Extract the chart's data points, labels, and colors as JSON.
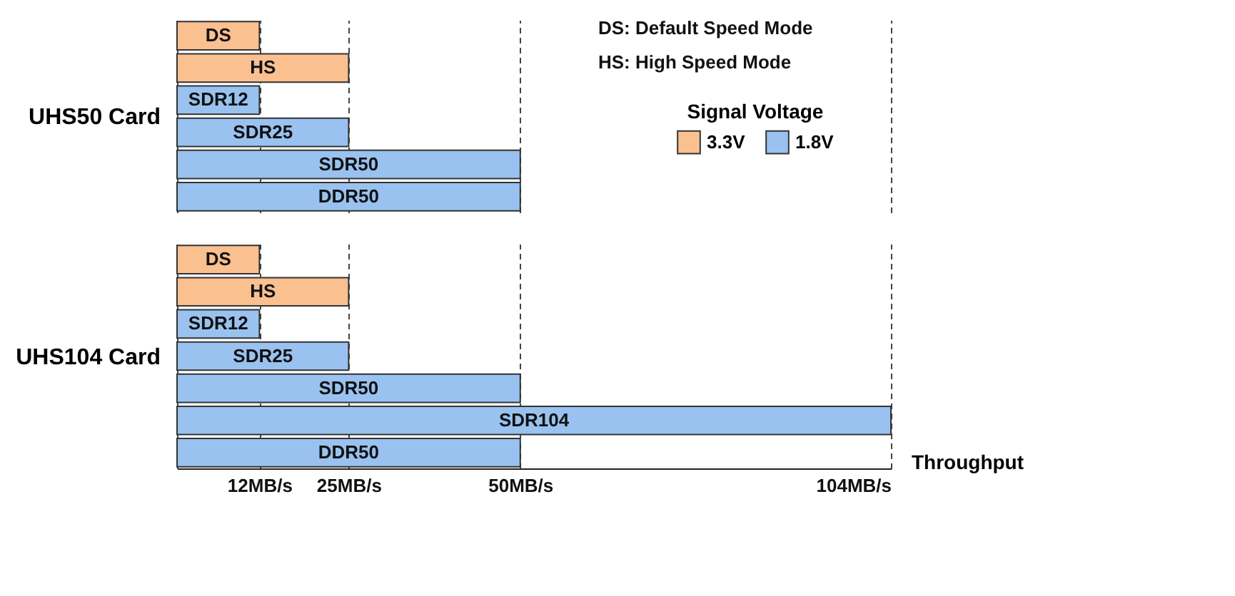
{
  "chart_data": [
    {
      "type": "bar",
      "orientation": "horizontal",
      "ylabel": "UHS50 Card",
      "legend_title": "Signal Voltage",
      "legend": "right",
      "tick_labels": false,
      "grid": "x",
      "xlim": [
        0,
        104
      ],
      "xticks": [
        12,
        25,
        50,
        104
      ],
      "categories": [
        "DS",
        "HS",
        "SDR12",
        "SDR25",
        "SDR50",
        "DDR50"
      ],
      "series": [
        {
          "name": "3.3V",
          "color": "#fac090",
          "values": [
            12,
            25,
            null,
            null,
            null,
            null
          ]
        },
        {
          "name": "1.8V",
          "color": "#99c2f0",
          "values": [
            null,
            null,
            12,
            25,
            50,
            50
          ]
        }
      ],
      "annotations": [
        "DS: Default Speed Mode",
        "HS: High Speed Mode"
      ]
    },
    {
      "type": "bar",
      "orientation": "horizontal",
      "ylabel": "UHS104 Card",
      "xlabel": "Throughput",
      "tick_labels": "x",
      "grid": "x",
      "xlim": [
        0,
        104
      ],
      "xticks": [
        {
          "value": 12,
          "label": "12MB/s"
        },
        {
          "value": 25,
          "label": "25MB/s"
        },
        {
          "value": 50,
          "label": "50MB/s"
        },
        {
          "value": 104,
          "label": "104MB/s"
        }
      ],
      "categories": [
        "DS",
        "HS",
        "SDR12",
        "SDR25",
        "SDR50",
        "SDR104",
        "DDR50"
      ],
      "series": [
        {
          "name": "3.3V",
          "color": "#fac090",
          "values": [
            12,
            25,
            null,
            null,
            null,
            null,
            null
          ]
        },
        {
          "name": "1.8V",
          "color": "#99c2f0",
          "values": [
            null,
            null,
            12,
            25,
            50,
            104,
            50
          ]
        }
      ]
    }
  ]
}
